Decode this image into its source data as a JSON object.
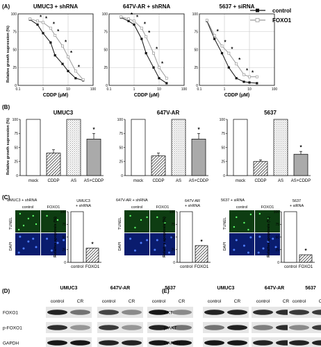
{
  "panels": {
    "A": "(A)",
    "B": "(B)",
    "C": "(C)",
    "D": "(D)",
    "E": "(E)"
  },
  "legend": {
    "control": "control",
    "foxo1": "FOXO1"
  },
  "colors": {
    "control": "#111111",
    "foxo1": "#9a9a9a",
    "gray_bar": "#aaaaaa",
    "tunel_green": "#0e3d12",
    "dapi_blue": "#0a1c6e"
  },
  "panel_a": {
    "ylabel": "Relative growth supression (%)",
    "xlabel": "CDDP (μM)",
    "xticks": [
      "0.1",
      "1",
      "10",
      "100"
    ],
    "yticks": [
      "0",
      "25",
      "50",
      "75",
      "100"
    ],
    "star": "*"
  },
  "panel_b": {
    "ylabel": "Relative growth supression (%)",
    "yticks": [
      "0",
      "25",
      "50",
      "75",
      "100"
    ],
    "categories": [
      "mock",
      "CDDP",
      "AS",
      "AS+CDDP"
    ],
    "star": "*"
  },
  "panel_c": {
    "ylabel": "Relative apoptosis (%)",
    "yticks": [
      "0",
      "25",
      "50",
      "75",
      "100"
    ],
    "micro_col_labels": [
      "control",
      "FOXO1"
    ],
    "stain_labels": [
      "TUNEL",
      "DAPI"
    ],
    "bar_categories": [
      "control",
      "FOXO1"
    ],
    "star": "*",
    "groups": [
      {
        "micro_title": "UMUC3 + shRNA",
        "bar_title": [
          "UMUC3",
          "+ shRNA"
        ]
      },
      {
        "micro_title": "647V-AR + shRNA",
        "bar_title": [
          "647V-AR",
          "+ shRNA"
        ]
      },
      {
        "micro_title": "5637 + siRNA",
        "bar_title": [
          "5637",
          "+ siRNA"
        ]
      }
    ]
  },
  "panel_d": {
    "cell_lines": [
      "UMUC3",
      "647V-AR",
      "5637"
    ],
    "lane_labels": [
      "control",
      "CR"
    ],
    "rows": [
      "FOXO1",
      "p-FOXO1",
      "GAPDH"
    ]
  },
  "panel_e": {
    "cell_lines": [
      "UMUC3",
      "647V-AR",
      "5637"
    ],
    "lane_labels": [
      "control",
      "CR"
    ],
    "rows": [
      "AKT",
      "p-AKT",
      "GAPDH"
    ]
  },
  "chart_data": [
    {
      "type": "line",
      "title": "UMUC3 + shRNA",
      "xlabel": "CDDP (μM)",
      "ylabel": "Relative growth supression (%)",
      "xscale": "log",
      "xlim": [
        0.1,
        100
      ],
      "ylim": [
        0,
        100
      ],
      "grid": true,
      "legend": "right",
      "series": [
        {
          "name": "control",
          "x": [
            0.3,
            0.6,
            1,
            2,
            3,
            6,
            10,
            20,
            40
          ],
          "y": [
            92,
            85,
            73,
            60,
            42,
            30,
            20,
            10,
            7
          ]
        },
        {
          "name": "FOXO1",
          "x": [
            0.3,
            0.6,
            1,
            2,
            3,
            6,
            10,
            20,
            40
          ],
          "y": [
            93,
            90,
            88,
            80,
            70,
            55,
            40,
            20,
            8
          ]
        }
      ]
    },
    {
      "type": "line",
      "title": "647V-AR + shRNA",
      "xlabel": "CDDP (μM)",
      "ylabel": "Relative growth supression (%)",
      "xscale": "log",
      "xlim": [
        0.1,
        100
      ],
      "ylim": [
        0,
        100
      ],
      "grid": true,
      "series": [
        {
          "name": "control",
          "x": [
            0.3,
            0.6,
            1,
            2,
            3,
            6,
            10,
            20
          ],
          "y": [
            95,
            90,
            85,
            65,
            45,
            25,
            10,
            3
          ]
        },
        {
          "name": "FOXO1",
          "x": [
            0.3,
            0.6,
            1,
            2,
            3,
            6,
            10,
            20
          ],
          "y": [
            96,
            93,
            90,
            80,
            68,
            45,
            25,
            10
          ]
        }
      ]
    },
    {
      "type": "line",
      "title": "5637 + siRNA",
      "xlabel": "CDDP (μM)",
      "ylabel": "Relative growth supression (%)",
      "xscale": "log",
      "xlim": [
        0.1,
        100
      ],
      "ylim": [
        0,
        100
      ],
      "grid": true,
      "series": [
        {
          "name": "control",
          "x": [
            0.2,
            0.4,
            0.8,
            1.5,
            3,
            6,
            10,
            20
          ],
          "y": [
            90,
            65,
            45,
            25,
            10,
            5,
            4,
            3
          ]
        },
        {
          "name": "FOXO1",
          "x": [
            0.2,
            0.4,
            0.8,
            1.5,
            3,
            6,
            10,
            20
          ],
          "y": [
            91,
            70,
            55,
            45,
            30,
            15,
            12,
            12
          ]
        }
      ]
    },
    {
      "type": "bar",
      "title": "UMUC3",
      "ylabel": "Relative growth supression (%)",
      "ylim": [
        0,
        100
      ],
      "categories": [
        "mock",
        "CDDP",
        "AS",
        "AS+CDDP"
      ],
      "values": [
        100,
        40,
        100,
        65
      ],
      "errors": [
        0,
        6,
        0,
        10
      ]
    },
    {
      "type": "bar",
      "title": "647V-AR",
      "ylabel": "Relative growth supression (%)",
      "ylim": [
        0,
        100
      ],
      "categories": [
        "mock",
        "CDDP",
        "AS",
        "AS+CDDP"
      ],
      "values": [
        100,
        35,
        100,
        65
      ],
      "errors": [
        0,
        5,
        0,
        10
      ]
    },
    {
      "type": "bar",
      "title": "5637",
      "ylabel": "Relative growth supression (%)",
      "ylim": [
        0,
        100
      ],
      "categories": [
        "mock",
        "CDDP",
        "AS",
        "AS+CDDP"
      ],
      "values": [
        100,
        25,
        100,
        38
      ],
      "errors": [
        0,
        3,
        0,
        5
      ]
    },
    {
      "type": "bar",
      "title": "UMUC3 + shRNA",
      "ylabel": "Relative apoptosis (%)",
      "ylim": [
        0,
        100
      ],
      "categories": [
        "control",
        "FOXO1"
      ],
      "values": [
        100,
        28
      ]
    },
    {
      "type": "bar",
      "title": "647V-AR + shRNA",
      "ylabel": "Relative apoptosis (%)",
      "ylim": [
        0,
        100
      ],
      "categories": [
        "control",
        "FOXO1"
      ],
      "values": [
        100,
        33
      ]
    },
    {
      "type": "bar",
      "title": "5637 + siRNA",
      "ylabel": "Relative apoptosis (%)",
      "ylim": [
        0,
        100
      ],
      "categories": [
        "control",
        "FOXO1"
      ],
      "values": [
        100,
        15
      ]
    }
  ]
}
